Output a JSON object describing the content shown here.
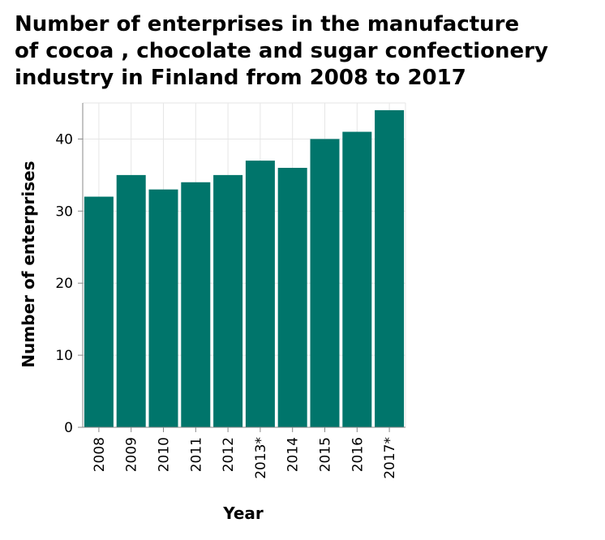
{
  "chart_data": {
    "type": "bar",
    "title_lines": [
      "Number of enterprises in the manufacture",
      "of cocoa , chocolate and sugar confectionery",
      "industry in Finland from 2008 to 2017"
    ],
    "xlabel": "Year",
    "ylabel": "Number of enterprises",
    "categories": [
      "2008",
      "2009",
      "2010",
      "2011",
      "2012",
      "2013*",
      "2014",
      "2015",
      "2016",
      "2017*"
    ],
    "values": [
      32,
      35,
      33,
      34,
      35,
      37,
      36,
      40,
      41,
      44
    ],
    "ylim": [
      0,
      45
    ],
    "yticks": [
      0,
      10,
      20,
      30,
      40
    ],
    "grid": true,
    "bar_color": "#00756b",
    "grid_color": "#e6e6e6"
  }
}
